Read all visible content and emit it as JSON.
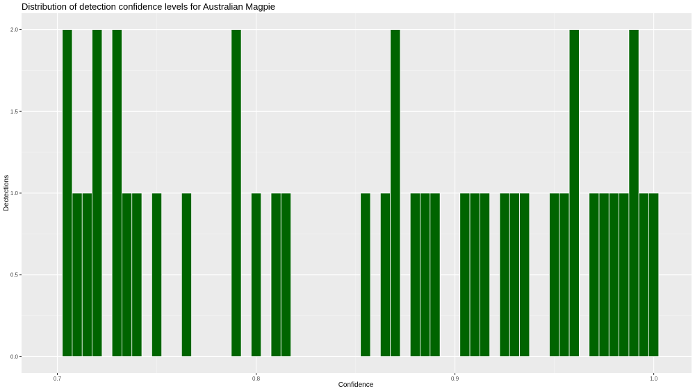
{
  "chart_data": {
    "type": "bar",
    "title": "Distribution of detection confidence levels for Australian Magpie",
    "xlabel": "Confidence",
    "ylabel": "Dectections",
    "xlim": [
      0.682,
      1.019
    ],
    "ylim": [
      -0.1,
      2.1
    ],
    "xticks": [
      0.7,
      0.8,
      0.9,
      1.0
    ],
    "xtick_labels": [
      "0.7",
      "0.8",
      "0.9",
      "1.0"
    ],
    "yticks": [
      0,
      0.5,
      1,
      1.5,
      2
    ],
    "ytick_labels": [
      "0.0",
      "0.5",
      "1.0",
      "1.5",
      "2.0"
    ],
    "bin_width": 0.005,
    "grid": true,
    "bar_color": "#006400",
    "panel_color": "#EBEBEB",
    "x": [
      0.705,
      0.71,
      0.715,
      0.72,
      0.73,
      0.735,
      0.74,
      0.75,
      0.765,
      0.79,
      0.8,
      0.81,
      0.815,
      0.855,
      0.865,
      0.87,
      0.88,
      0.885,
      0.89,
      0.905,
      0.91,
      0.915,
      0.925,
      0.93,
      0.935,
      0.95,
      0.955,
      0.96,
      0.97,
      0.975,
      0.98,
      0.985,
      0.99,
      0.995,
      1.0
    ],
    "values": [
      2,
      1,
      1,
      2,
      2,
      1,
      1,
      1,
      1,
      2,
      1,
      1,
      1,
      1,
      1,
      2,
      1,
      1,
      1,
      1,
      1,
      1,
      1,
      1,
      1,
      1,
      1,
      2,
      1,
      1,
      1,
      1,
      2,
      1,
      1
    ]
  }
}
